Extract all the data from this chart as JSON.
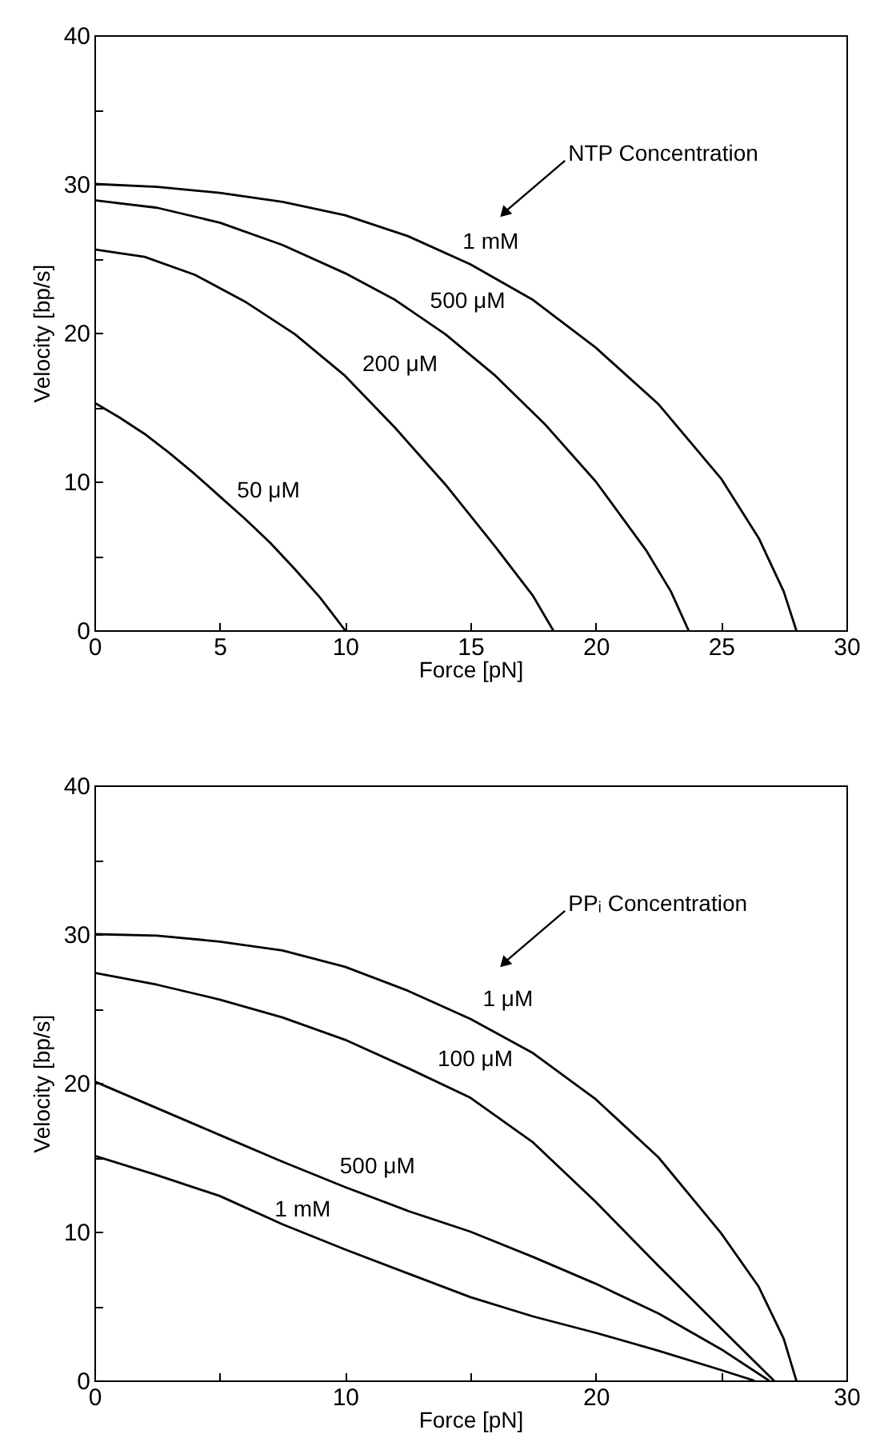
{
  "chart_data": [
    {
      "type": "line",
      "xlabel": "Force [pN]",
      "ylabel": "Velocity [bp/s]",
      "xlim": [
        0,
        30
      ],
      "ylim": [
        0,
        40
      ],
      "xticks": [
        0,
        5,
        10,
        15,
        20,
        25,
        30
      ],
      "yticks": [
        0,
        {
          "value": 5,
          "label": null
        },
        10,
        {
          "value": 15,
          "label": null
        },
        20,
        {
          "value": 25,
          "label": null
        },
        30,
        {
          "value": 35,
          "label": null
        },
        40
      ],
      "grid": false,
      "legend": false,
      "marker": "none",
      "line_style": "solid",
      "series": [
        {
          "color": "#000000",
          "x": [
            0,
            2.5,
            5,
            7.5,
            10,
            12.5,
            15,
            17.5,
            20,
            22.5,
            25,
            26.5,
            27.5,
            28
          ],
          "values": [
            30.0,
            29.8,
            29.4,
            28.8,
            27.9,
            26.5,
            24.6,
            22.2,
            19.0,
            15.2,
            10.2,
            6.2,
            2.6,
            0
          ]
        },
        {
          "color": "#000000",
          "x": [
            0,
            2.5,
            5,
            7.5,
            10,
            12,
            14,
            16,
            18,
            20,
            22,
            23,
            23.7
          ],
          "values": [
            28.9,
            28.4,
            27.4,
            25.9,
            24.0,
            22.2,
            19.9,
            17.1,
            13.8,
            10.0,
            5.4,
            2.6,
            0
          ]
        },
        {
          "color": "#000000",
          "x": [
            0,
            2,
            4,
            6,
            8,
            10,
            12,
            14,
            16,
            17.5,
            18.3
          ],
          "values": [
            25.6,
            25.1,
            23.9,
            22.1,
            19.9,
            17.1,
            13.6,
            9.8,
            5.6,
            2.3,
            0
          ]
        },
        {
          "color": "#000000",
          "x": [
            0,
            1,
            2,
            3,
            4,
            5,
            6,
            7,
            8,
            9,
            10
          ],
          "values": [
            15.3,
            14.3,
            13.2,
            11.9,
            10.5,
            9.0,
            7.5,
            5.9,
            4.1,
            2.2,
            0
          ]
        }
      ],
      "annotations": [
        "NTP Concentration",
        {
          "text": "1 mM",
          "x": 14.5,
          "y": 25.0
        },
        {
          "text": "500 μM",
          "x": 13.2,
          "y": 21.0
        },
        {
          "text": "200 μM",
          "x": 10.5,
          "y": 16.8
        },
        {
          "text": "50 μM",
          "x": 5.5,
          "y": 8.3
        }
      ]
    },
    {
      "type": "line",
      "xlabel": "Force [pN]",
      "ylabel": "Velocity [bp/s]",
      "xlim": [
        0,
        30
      ],
      "ylim": [
        0,
        40
      ],
      "xticks": [
        0,
        {
          "value": 5,
          "label": null
        },
        10,
        {
          "value": 15,
          "label": null
        },
        20,
        {
          "value": 25,
          "label": null
        },
        30
      ],
      "yticks": [
        0,
        {
          "value": 5,
          "label": null
        },
        10,
        {
          "value": 15,
          "label": null
        },
        20,
        {
          "value": 25,
          "label": null
        },
        30,
        {
          "value": 35,
          "label": null
        },
        40
      ],
      "grid": false,
      "legend": false,
      "marker": "none",
      "line_style": "solid",
      "series": [
        {
          "color": "#000000",
          "x": [
            0,
            2.5,
            5,
            7.5,
            10,
            12.5,
            15,
            17.5,
            20,
            22.5,
            25,
            26.5,
            27.5,
            28
          ],
          "values": [
            30.0,
            29.9,
            29.5,
            28.9,
            27.8,
            26.2,
            24.3,
            22.0,
            18.9,
            15.0,
            9.9,
            6.3,
            2.8,
            0
          ]
        },
        {
          "color": "#000000",
          "x": [
            0,
            2.5,
            5,
            7.5,
            10,
            12.5,
            15,
            17.5,
            20,
            22.5,
            25,
            27.1
          ],
          "values": [
            27.4,
            26.6,
            25.6,
            24.4,
            22.9,
            21.0,
            19.0,
            16.0,
            12.0,
            7.7,
            3.5,
            0
          ]
        },
        {
          "color": "#000000",
          "x": [
            0,
            2.5,
            5,
            7.5,
            10,
            12.5,
            15,
            17.5,
            20,
            22.5,
            25,
            26.9
          ],
          "values": [
            20.1,
            18.3,
            16.5,
            14.7,
            13.0,
            11.4,
            10.0,
            8.3,
            6.5,
            4.5,
            2.1,
            0
          ]
        },
        {
          "color": "#000000",
          "x": [
            0,
            2.5,
            5,
            7.5,
            10,
            12.5,
            15,
            17.5,
            20,
            22.5,
            25,
            26.3
          ],
          "values": [
            15.1,
            13.8,
            12.4,
            10.5,
            8.8,
            7.2,
            5.6,
            4.3,
            3.2,
            2.0,
            0.7,
            0
          ]
        }
      ],
      "annotations": [
        "PPᵢ Concentration",
        {
          "text": "1 μM",
          "x": 15.3,
          "y": 24.5
        },
        {
          "text": "100 μM",
          "x": 13.5,
          "y": 20.5
        },
        {
          "text": "500 μM",
          "x": 9.6,
          "y": 13.3
        },
        {
          "text": "1 mM",
          "x": 7.0,
          "y": 10.4
        }
      ]
    }
  ]
}
